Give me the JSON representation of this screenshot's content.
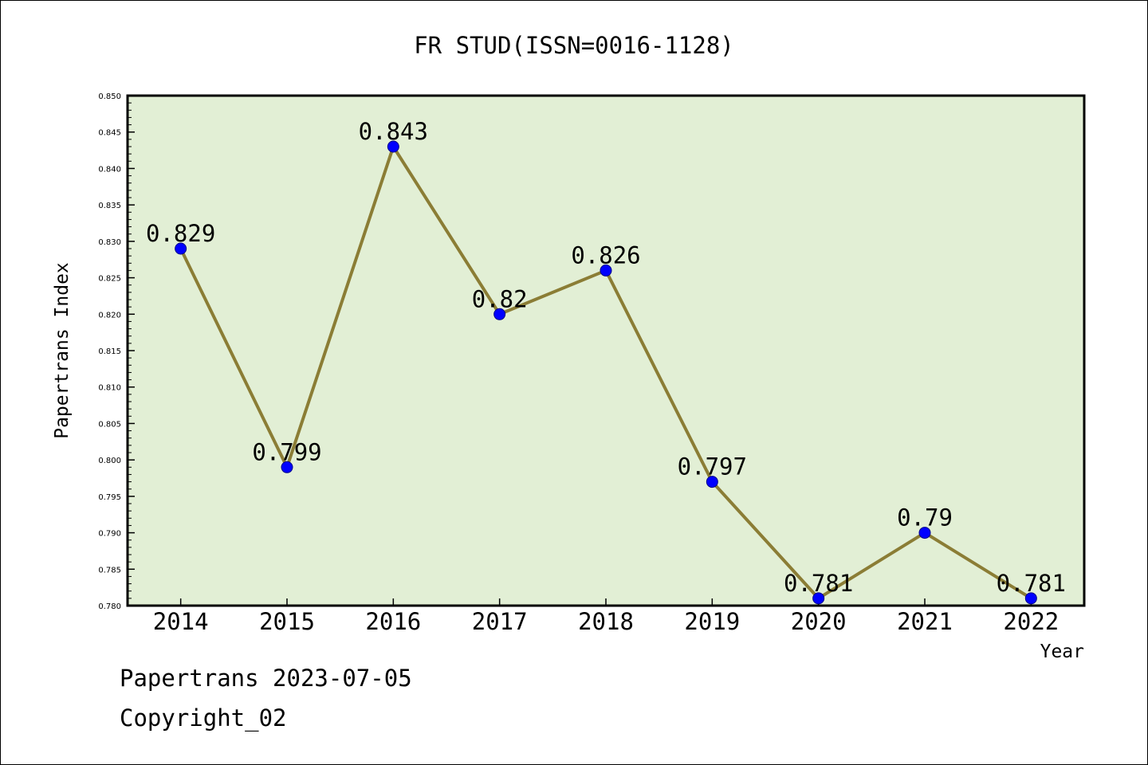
{
  "footer": {
    "line1": "Papertrans 2023-07-05",
    "line2": "Copyright_02"
  },
  "chart_data": {
    "type": "line",
    "title": "FR STUD(ISSN=0016-1128)",
    "xlabel": "Year",
    "ylabel": "Papertrans Index",
    "categories": [
      "2014",
      "2015",
      "2016",
      "2017",
      "2018",
      "2019",
      "2020",
      "2021",
      "2022"
    ],
    "values": [
      0.829,
      0.799,
      0.843,
      0.82,
      0.826,
      0.797,
      0.781,
      0.79,
      0.781
    ],
    "data_labels": [
      "0.829",
      "0.799",
      "0.843",
      "0.82",
      "0.826",
      "0.797",
      "0.781",
      "0.79",
      "0.781"
    ],
    "ylim": [
      0.78,
      0.85
    ],
    "yticks": [
      "0.780",
      "0.785",
      "0.790",
      "0.795",
      "0.800",
      "0.805",
      "0.810",
      "0.815",
      "0.820",
      "0.825",
      "0.830",
      "0.835",
      "0.840",
      "0.845",
      "0.850"
    ],
    "grid": false,
    "colors": {
      "plot_background": "#e2efd5",
      "line": "#8b7d35",
      "marker": "#0000ff"
    }
  }
}
